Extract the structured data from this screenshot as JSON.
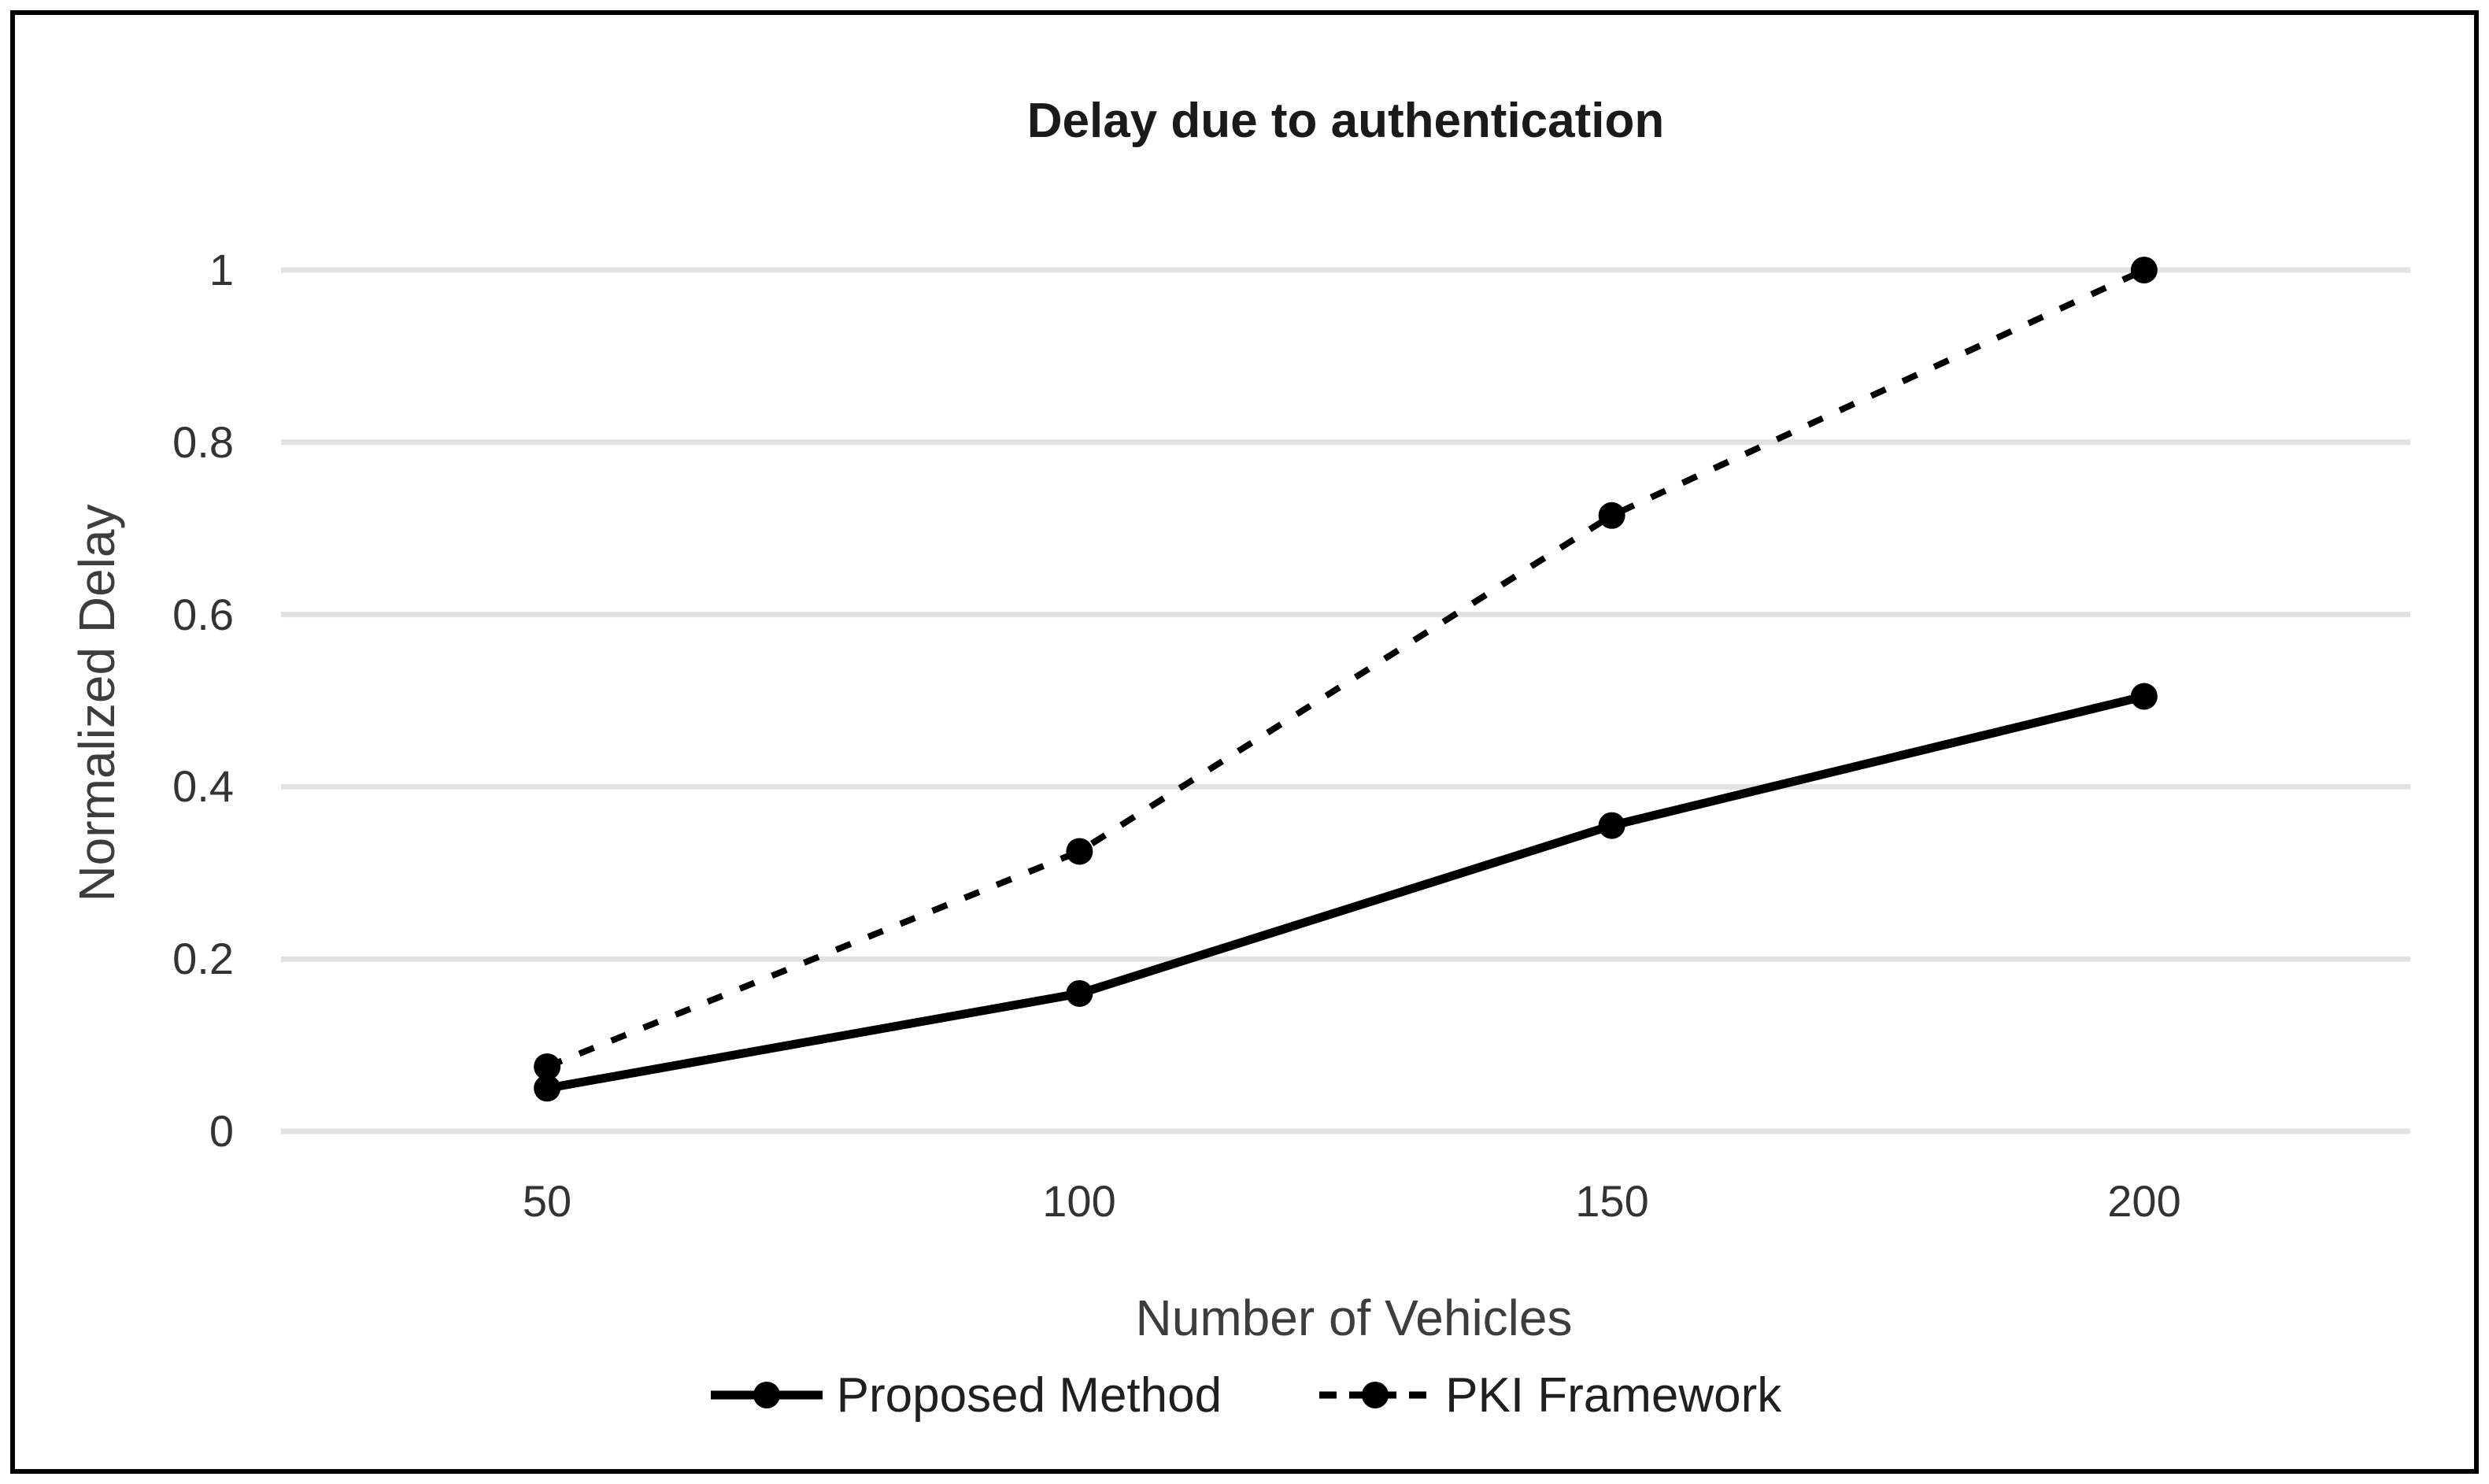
{
  "chart_data": {
    "type": "line",
    "title": "Delay due to authentication",
    "x_axis": {
      "label": "Number of Vehicles",
      "ticks": [
        "50",
        "100",
        "150",
        "200"
      ],
      "values": [
        50,
        100,
        150,
        200
      ]
    },
    "y_axis": {
      "label": "Normalized Delay",
      "min": 0,
      "max": 1,
      "ticks": [
        {
          "value": 0,
          "label": "0"
        },
        {
          "value": 0.2,
          "label": "0.2"
        },
        {
          "value": 0.4,
          "label": "0.4"
        },
        {
          "value": 0.6,
          "label": "0.6"
        },
        {
          "value": 0.8,
          "label": "0.8"
        },
        {
          "value": 1,
          "label": "1"
        }
      ]
    },
    "series": [
      {
        "name": "Proposed Method",
        "style": "solid",
        "marker": "circle",
        "color": "#000000",
        "values": [
          0.05,
          0.16,
          0.355,
          0.505
        ]
      },
      {
        "name": "PKI Framework",
        "style": "dashed",
        "marker": "circle",
        "color": "#000000",
        "values": [
          0.075,
          0.325,
          0.715,
          1.0
        ]
      }
    ],
    "grid": "horizontal",
    "grid_color": "#e2e2e2",
    "legend_position": "bottom"
  }
}
